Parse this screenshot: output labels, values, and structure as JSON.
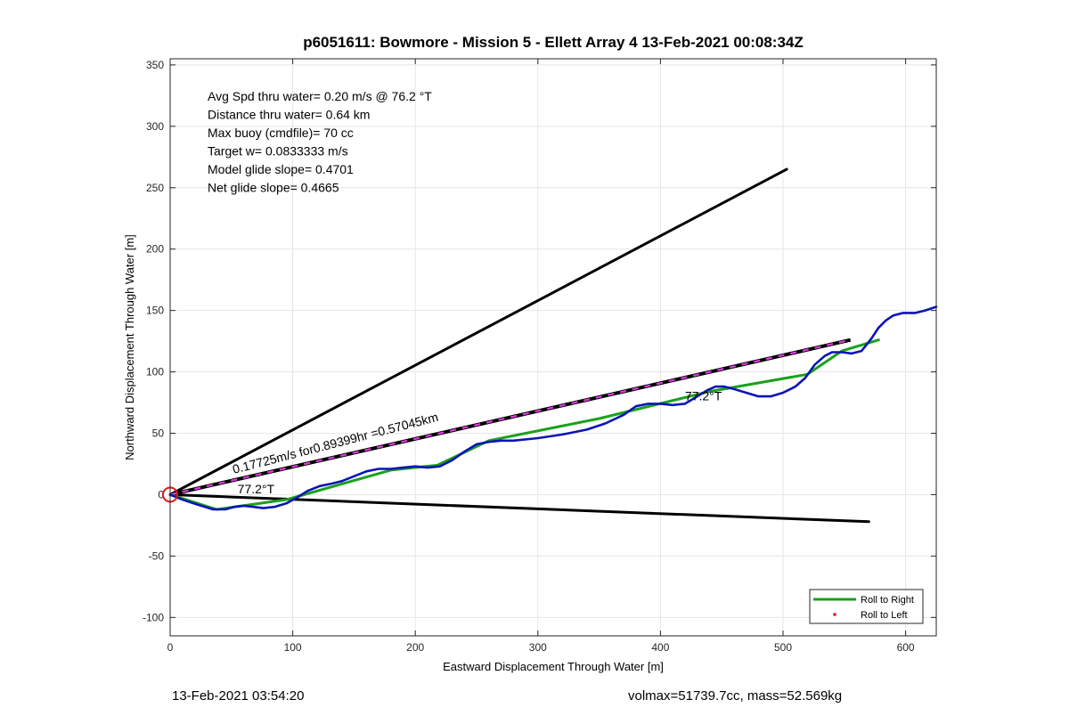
{
  "chart_data": {
    "type": "line",
    "title": "p6051611: Bowmore - Mission 5 - Ellett Array 4 13-Feb-2021 00:08:34Z",
    "xlabel": "Eastward Displacement Through Water [m]",
    "ylabel": "Northward Displacement Through Water [m]",
    "xlim": [
      0,
      625
    ],
    "ylim": [
      -115,
      355
    ],
    "xticks": [
      0,
      100,
      200,
      300,
      400,
      500,
      600
    ],
    "yticks": [
      -100,
      -50,
      0,
      50,
      100,
      150,
      200,
      250,
      300,
      350
    ],
    "grid": true,
    "stats": [
      "Avg Spd thru water=  0.20 m/s @  76.2 °T",
      "Distance thru water=  0.64 km",
      "Max buoy (cmdfile)= 70 cc",
      "Target w= 0.0833333 m/s",
      "Model glide slope= 0.4701",
      "Net glide slope= 0.4665"
    ],
    "annotations": [
      {
        "text": "0.17725m/s for0.89399hr =0.57045km",
        "x": 52,
        "y": 17,
        "rotation_deg": -14.5
      },
      {
        "text": "77.2°T",
        "x": 55,
        "y": 1,
        "rotation_deg": 0
      },
      {
        "text": "77.2°T",
        "x": 420,
        "y": 77,
        "rotation_deg": 0
      }
    ],
    "series": [
      {
        "id": "cone-upper",
        "color": "#000000",
        "dash": false,
        "points": [
          [
            0,
            0
          ],
          [
            503,
            265
          ]
        ]
      },
      {
        "id": "cone-lower",
        "color": "#000000",
        "dash": false,
        "points": [
          [
            0,
            0
          ],
          [
            570,
            -22
          ]
        ]
      },
      {
        "id": "mean-track",
        "color": "#000000",
        "dash_color": "#e03ce0",
        "dash": true,
        "points": [
          [
            0,
            0
          ],
          [
            555,
            126
          ]
        ]
      },
      {
        "name": "Roll to Right",
        "id": "roll-right",
        "color": "#1aa11a",
        "dash": false,
        "points": [
          [
            0,
            0
          ],
          [
            38,
            -12
          ],
          [
            95,
            -4
          ],
          [
            180,
            20
          ],
          [
            218,
            24
          ],
          [
            260,
            44
          ],
          [
            350,
            62
          ],
          [
            440,
            84
          ],
          [
            520,
            98
          ],
          [
            548,
            117
          ],
          [
            578,
            126
          ]
        ]
      },
      {
        "id": "glider-track",
        "color": "#0a14b8",
        "dash": false,
        "points": [
          [
            0,
            0
          ],
          [
            10,
            -4
          ],
          [
            22,
            -8
          ],
          [
            35,
            -12
          ],
          [
            45,
            -12
          ],
          [
            52,
            -10
          ],
          [
            60,
            -9
          ],
          [
            68,
            -10
          ],
          [
            76,
            -11
          ],
          [
            85,
            -10
          ],
          [
            95,
            -7
          ],
          [
            104,
            -2
          ],
          [
            112,
            3
          ],
          [
            122,
            7
          ],
          [
            132,
            9
          ],
          [
            140,
            11
          ],
          [
            150,
            15
          ],
          [
            160,
            19
          ],
          [
            170,
            21
          ],
          [
            180,
            21
          ],
          [
            190,
            22
          ],
          [
            200,
            23
          ],
          [
            210,
            22
          ],
          [
            220,
            23
          ],
          [
            230,
            28
          ],
          [
            240,
            35
          ],
          [
            250,
            41
          ],
          [
            260,
            43
          ],
          [
            270,
            44
          ],
          [
            280,
            44
          ],
          [
            300,
            46
          ],
          [
            320,
            49
          ],
          [
            340,
            53
          ],
          [
            355,
            58
          ],
          [
            370,
            65
          ],
          [
            380,
            72
          ],
          [
            390,
            74
          ],
          [
            400,
            74
          ],
          [
            410,
            73
          ],
          [
            420,
            74
          ],
          [
            430,
            80
          ],
          [
            438,
            85
          ],
          [
            445,
            88
          ],
          [
            452,
            88
          ],
          [
            460,
            86
          ],
          [
            470,
            83
          ],
          [
            480,
            80
          ],
          [
            490,
            80
          ],
          [
            500,
            83
          ],
          [
            510,
            88
          ],
          [
            518,
            95
          ],
          [
            526,
            106
          ],
          [
            534,
            113
          ],
          [
            540,
            116
          ],
          [
            548,
            116
          ],
          [
            556,
            115
          ],
          [
            564,
            117
          ],
          [
            572,
            127
          ],
          [
            578,
            136
          ],
          [
            584,
            142
          ],
          [
            590,
            146
          ],
          [
            598,
            148
          ],
          [
            608,
            148
          ],
          [
            616,
            150
          ],
          [
            625,
            153
          ]
        ]
      }
    ],
    "markers": [
      {
        "id": "start-marker",
        "x": 0,
        "y": 0,
        "color": "#e01818"
      }
    ],
    "legend": {
      "position": "bottom-right",
      "entries": [
        {
          "label": "Roll to Right",
          "color": "#1aa11a",
          "style": "line"
        },
        {
          "label": "Roll to Left",
          "color": "#e01818",
          "style": "dot"
        }
      ]
    }
  },
  "footer": {
    "left": "13-Feb-2021 03:54:20",
    "right": "volmax=51739.7cc, mass=52.569kg"
  }
}
